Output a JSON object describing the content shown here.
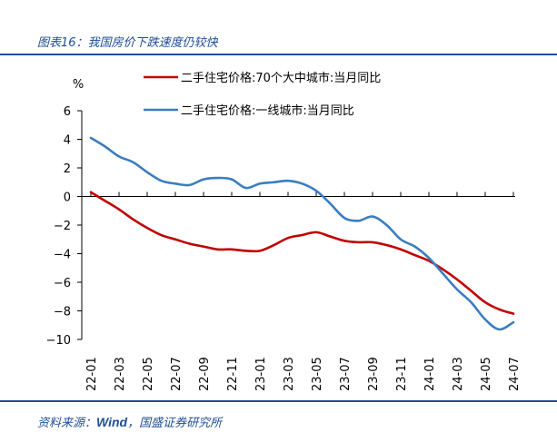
{
  "figure": {
    "title": "图表16：我国房价下跌速度仍较快",
    "source_prefix": "资料来源：",
    "source_wind": "Wind",
    "source_suffix": "，国盛证券研究所"
  },
  "chart_data": {
    "type": "line",
    "ylabel": "%",
    "ylim": [
      -10,
      6
    ],
    "yticks": [
      -10,
      -8,
      -6,
      -4,
      -2,
      0,
      2,
      4,
      6
    ],
    "x": [
      "22-01",
      "22-02",
      "22-03",
      "22-04",
      "22-05",
      "22-06",
      "22-07",
      "22-08",
      "22-09",
      "22-10",
      "22-11",
      "22-12",
      "23-01",
      "23-02",
      "23-03",
      "23-04",
      "23-05",
      "23-06",
      "23-07",
      "23-08",
      "23-09",
      "23-10",
      "23-11",
      "23-12",
      "24-01",
      "24-02",
      "24-03",
      "24-04",
      "24-05",
      "24-06",
      "24-07"
    ],
    "xtick_labels": [
      "22-01",
      "22-03",
      "22-05",
      "22-07",
      "22-09",
      "22-11",
      "23-01",
      "23-03",
      "23-05",
      "23-07",
      "23-09",
      "23-11",
      "24-01",
      "24-03",
      "24-05",
      "24-07"
    ],
    "legend_position": "top",
    "grid": false,
    "series": [
      {
        "name": "二手住宅价格:70个大中城市:当月同比",
        "color": "#c00000",
        "values": [
          0.3,
          -0.3,
          -0.9,
          -1.6,
          -2.2,
          -2.7,
          -3.0,
          -3.3,
          -3.5,
          -3.7,
          -3.7,
          -3.8,
          -3.8,
          -3.4,
          -2.9,
          -2.7,
          -2.5,
          -2.8,
          -3.1,
          -3.2,
          -3.2,
          -3.4,
          -3.7,
          -4.1,
          -4.5,
          -5.1,
          -5.8,
          -6.6,
          -7.4,
          -7.9,
          -8.2
        ]
      },
      {
        "name": "二手住宅价格:一线城市:当月同比",
        "color": "#3a7dc0",
        "values": [
          4.1,
          3.5,
          2.8,
          2.4,
          1.7,
          1.1,
          0.9,
          0.8,
          1.2,
          1.3,
          1.2,
          0.6,
          0.9,
          1.0,
          1.1,
          0.9,
          0.4,
          -0.5,
          -1.5,
          -1.7,
          -1.4,
          -2.0,
          -3.0,
          -3.5,
          -4.3,
          -5.4,
          -6.5,
          -7.4,
          -8.6,
          -9.3,
          -8.8
        ]
      }
    ]
  }
}
